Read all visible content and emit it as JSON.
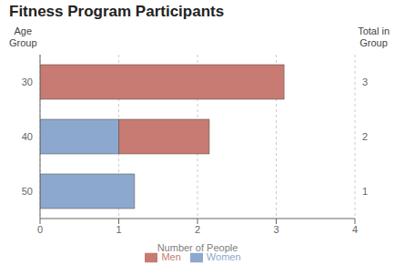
{
  "chart_data": {
    "type": "bar",
    "orientation": "horizontal",
    "stacked": true,
    "title": "Fitness Program Participants",
    "xlabel": "Number of People",
    "ylabel": "Age\nGroup",
    "y2label": "Total in\nGroup",
    "categories": [
      "30",
      "40",
      "50"
    ],
    "y2categories": [
      "3",
      "2",
      "1"
    ],
    "series": [
      {
        "name": "Women",
        "color": "#8DA8CE",
        "values": [
          0.0,
          1.0,
          1.2
        ]
      },
      {
        "name": "Men",
        "color": "#C87B72",
        "values": [
          3.1,
          1.15,
          0.0
        ]
      }
    ],
    "xlim": [
      0,
      4.0
    ],
    "xticks": [
      0,
      1,
      2,
      3,
      4
    ],
    "grid": true,
    "legend": "bottom"
  }
}
